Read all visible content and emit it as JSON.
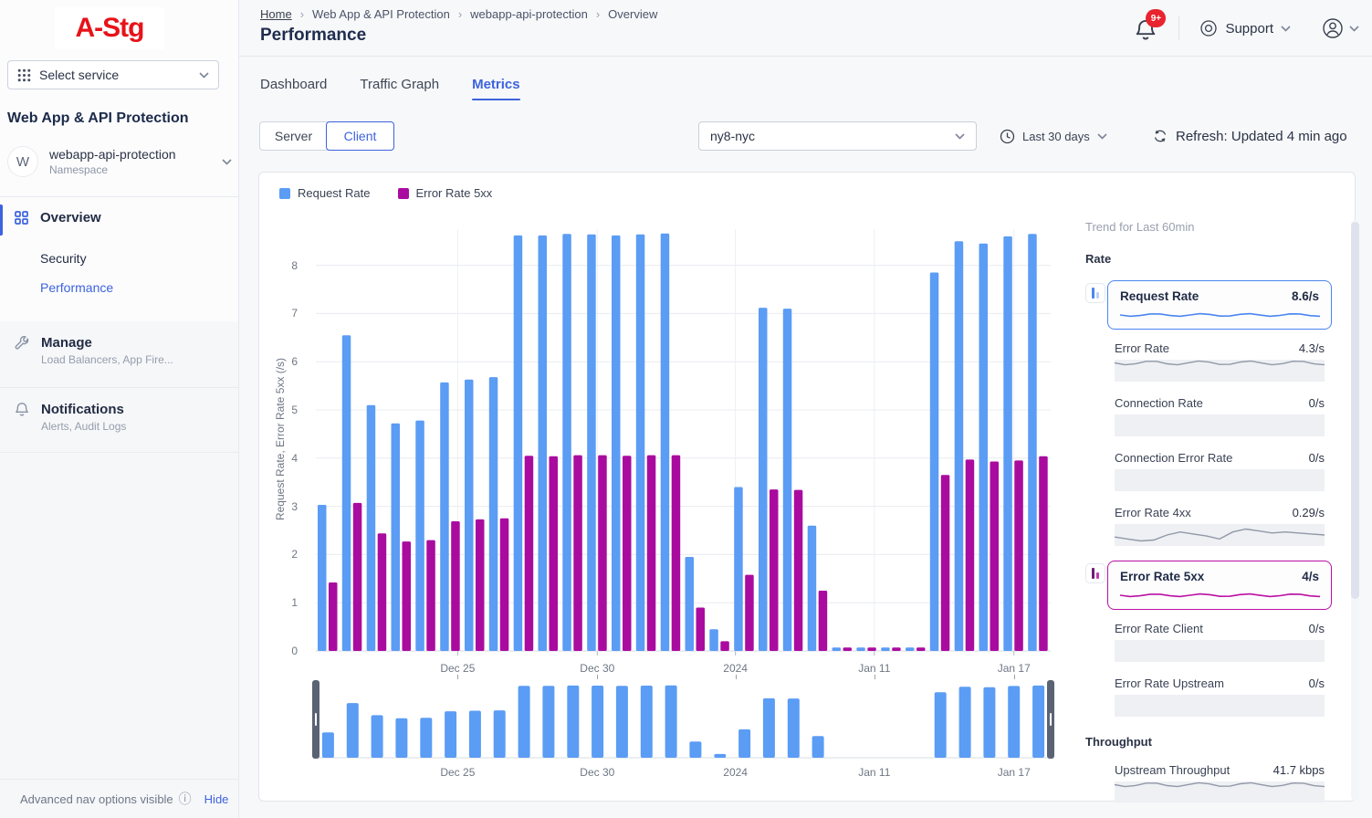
{
  "colors": {
    "accent_blue": "#3d63dd",
    "bar_blue": "#5b9cf5",
    "bar_magenta": "#aa0b9f",
    "spark_gray": "#9199a7",
    "logo_red": "#e81219",
    "badge_red": "#e8242e"
  },
  "sidebar": {
    "logo": "A-Stg",
    "select_service_label": "Select service",
    "service_group_title": "Web App & API Protection",
    "namespace": {
      "avatar_initial": "W",
      "name": "webapp-api-protection",
      "type_label": "Namespace"
    },
    "nav": {
      "overview_label": "Overview",
      "security_label": "Security",
      "performance_label": "Performance",
      "manage_label": "Manage",
      "manage_subtitle": "Load Balancers, App Fire...",
      "notifications_label": "Notifications",
      "notifications_subtitle": "Alerts, Audit Logs"
    },
    "footer": {
      "message": "Advanced nav options visible",
      "info_icon": "ⓘ",
      "hide_link": "Hide"
    }
  },
  "header": {
    "breadcrumb": [
      "Home",
      "Web App & API Protection",
      "webapp-api-protection",
      "Overview"
    ],
    "page_title": "Performance",
    "notifications_badge": "9+",
    "support_label": "Support"
  },
  "tabs": {
    "items": [
      "Dashboard",
      "Traffic Graph",
      "Metrics"
    ],
    "active": "Metrics"
  },
  "controls": {
    "mode_options": [
      "Server",
      "Client"
    ],
    "mode_active": "Client",
    "site_selector_value": "ny8-nyc",
    "time_range_label": "Last 30 days",
    "refresh_label": "Refresh: Updated 4 min ago"
  },
  "chart_data": {
    "type": "bar",
    "title": "",
    "xlabel": "",
    "ylabel": "Request Rate, Error Rate 5xx (/s)",
    "ylim": [
      0,
      8.75
    ],
    "yticks": [
      0,
      1,
      2,
      3,
      4,
      5,
      6,
      7,
      8
    ],
    "grid": true,
    "legend_position": "top-left",
    "xticks": [
      {
        "label": "Dec 25",
        "pos_pct": 19.3
      },
      {
        "label": "Dec 30",
        "pos_pct": 38.3
      },
      {
        "label": "2024",
        "pos_pct": 57.1
      },
      {
        "label": "Jan 11",
        "pos_pct": 76.0
      },
      {
        "label": "Jan 17",
        "pos_pct": 95.0
      }
    ],
    "x": [
      1,
      2,
      3,
      4,
      5,
      6,
      7,
      8,
      9,
      10,
      11,
      12,
      13,
      14,
      15,
      16,
      17,
      18,
      19,
      20,
      21,
      22,
      23,
      24,
      25,
      26,
      27,
      28,
      29,
      30
    ],
    "series": [
      {
        "name": "Request Rate",
        "color": "#5b9cf5",
        "values": [
          3.03,
          6.55,
          5.1,
          4.72,
          4.78,
          5.57,
          5.63,
          5.68,
          8.62,
          8.62,
          8.65,
          8.64,
          8.62,
          8.64,
          8.66,
          1.95,
          0.45,
          3.4,
          7.12,
          7.1,
          2.6,
          0.07,
          0.07,
          0.07,
          0.07,
          7.85,
          8.5,
          8.45,
          8.6,
          8.65
        ]
      },
      {
        "name": "Error Rate 5xx",
        "color": "#aa0b9f",
        "values": [
          1.42,
          3.07,
          2.44,
          2.27,
          2.3,
          2.69,
          2.73,
          2.75,
          4.05,
          4.04,
          4.06,
          4.06,
          4.05,
          4.06,
          4.06,
          0.9,
          0.2,
          1.58,
          3.35,
          3.34,
          1.25,
          0.07,
          0.07,
          0.07,
          0.07,
          3.65,
          3.97,
          3.93,
          3.95,
          4.04
        ]
      }
    ],
    "brush_overview": {
      "series_shown": "Request Rate",
      "xtick_labels": [
        "Dec 25",
        "Dec 30",
        "2024",
        "Jan 11",
        "Jan 17"
      ]
    }
  },
  "trend_panel": {
    "title": "Trend for Last 60min",
    "sections": [
      {
        "heading": "Rate",
        "metrics": [
          {
            "label": "Request Rate",
            "value": "8.6/s",
            "selected": true,
            "accent": "#4a86f0",
            "icon_tall": "#4a86f0",
            "icon_short": "#b9d2f8",
            "spark": "flat"
          },
          {
            "label": "Error Rate",
            "value": "4.3/s",
            "selected": false,
            "spark": "flat"
          },
          {
            "label": "Connection Rate",
            "value": "0/s",
            "selected": false,
            "spark": "none"
          },
          {
            "label": "Connection Error Rate",
            "value": "0/s",
            "selected": false,
            "spark": "none"
          },
          {
            "label": "Error Rate 4xx",
            "value": "0.29/s",
            "selected": false,
            "spark": "wavy"
          },
          {
            "label": "Error Rate 5xx",
            "value": "4/s",
            "selected": true,
            "accent": "#bb10a3",
            "icon_tall": "#6d1d73",
            "icon_short": "#c13ab0",
            "spark": "flat"
          },
          {
            "label": "Error Rate Client",
            "value": "0/s",
            "selected": false,
            "spark": "none"
          },
          {
            "label": "Error Rate Upstream",
            "value": "0/s",
            "selected": false,
            "spark": "none"
          }
        ]
      },
      {
        "heading": "Throughput",
        "metrics": [
          {
            "label": "Upstream Throughput",
            "value": "41.7 kbps",
            "selected": false,
            "spark": "flat"
          }
        ]
      }
    ]
  }
}
